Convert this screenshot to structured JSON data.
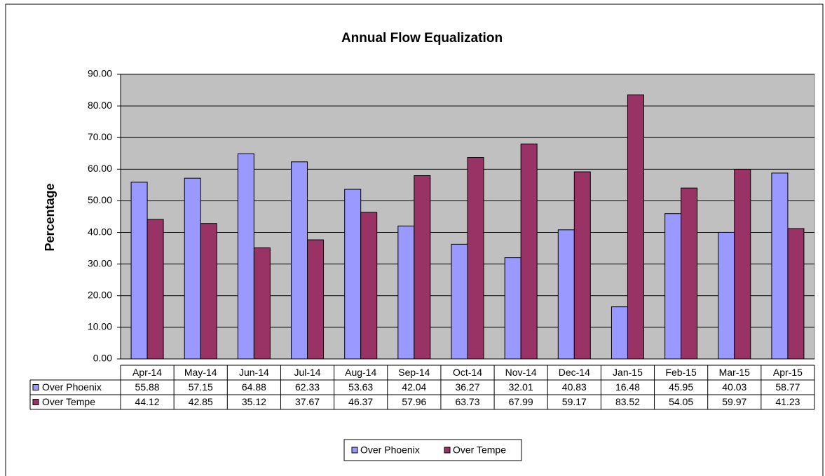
{
  "chart_data": {
    "type": "bar",
    "title": "Annual Flow Equalization",
    "y_label": "Percentage",
    "categories": [
      "Apr-14",
      "May-14",
      "Jun-14",
      "Jul-14",
      "Aug-14",
      "Sep-14",
      "Oct-14",
      "Nov-14",
      "Dec-14",
      "Jan-15",
      "Feb-15",
      "Mar-15",
      "Apr-15"
    ],
    "series": [
      {
        "name": "Over Phoenix",
        "color": "#9999ff",
        "values": [
          55.88,
          57.15,
          64.88,
          62.33,
          53.63,
          42.04,
          36.27,
          32.01,
          40.83,
          16.48,
          45.95,
          40.03,
          58.77
        ]
      },
      {
        "name": "Over Tempe",
        "color": "#993366",
        "values": [
          44.12,
          42.85,
          35.12,
          37.67,
          46.37,
          57.96,
          63.73,
          67.99,
          59.17,
          83.52,
          54.05,
          59.97,
          41.23
        ]
      }
    ],
    "ylim": [
      0,
      90
    ],
    "yticks": [
      {
        "value": 0,
        "label": "0.00"
      },
      {
        "value": 10,
        "label": "10.00"
      },
      {
        "value": 20,
        "label": "20.00"
      },
      {
        "value": 30,
        "label": "30.00"
      },
      {
        "value": 40,
        "label": "40.00"
      },
      {
        "value": 50,
        "label": "50.00"
      },
      {
        "value": 60,
        "label": "60.00"
      },
      {
        "value": 70,
        "label": "70.00"
      },
      {
        "value": 80,
        "label": "80.00"
      },
      {
        "value": 90,
        "label": "90.00"
      }
    ],
    "grid": true,
    "legend": "bottom",
    "plot_background": "#c0c0c0"
  }
}
